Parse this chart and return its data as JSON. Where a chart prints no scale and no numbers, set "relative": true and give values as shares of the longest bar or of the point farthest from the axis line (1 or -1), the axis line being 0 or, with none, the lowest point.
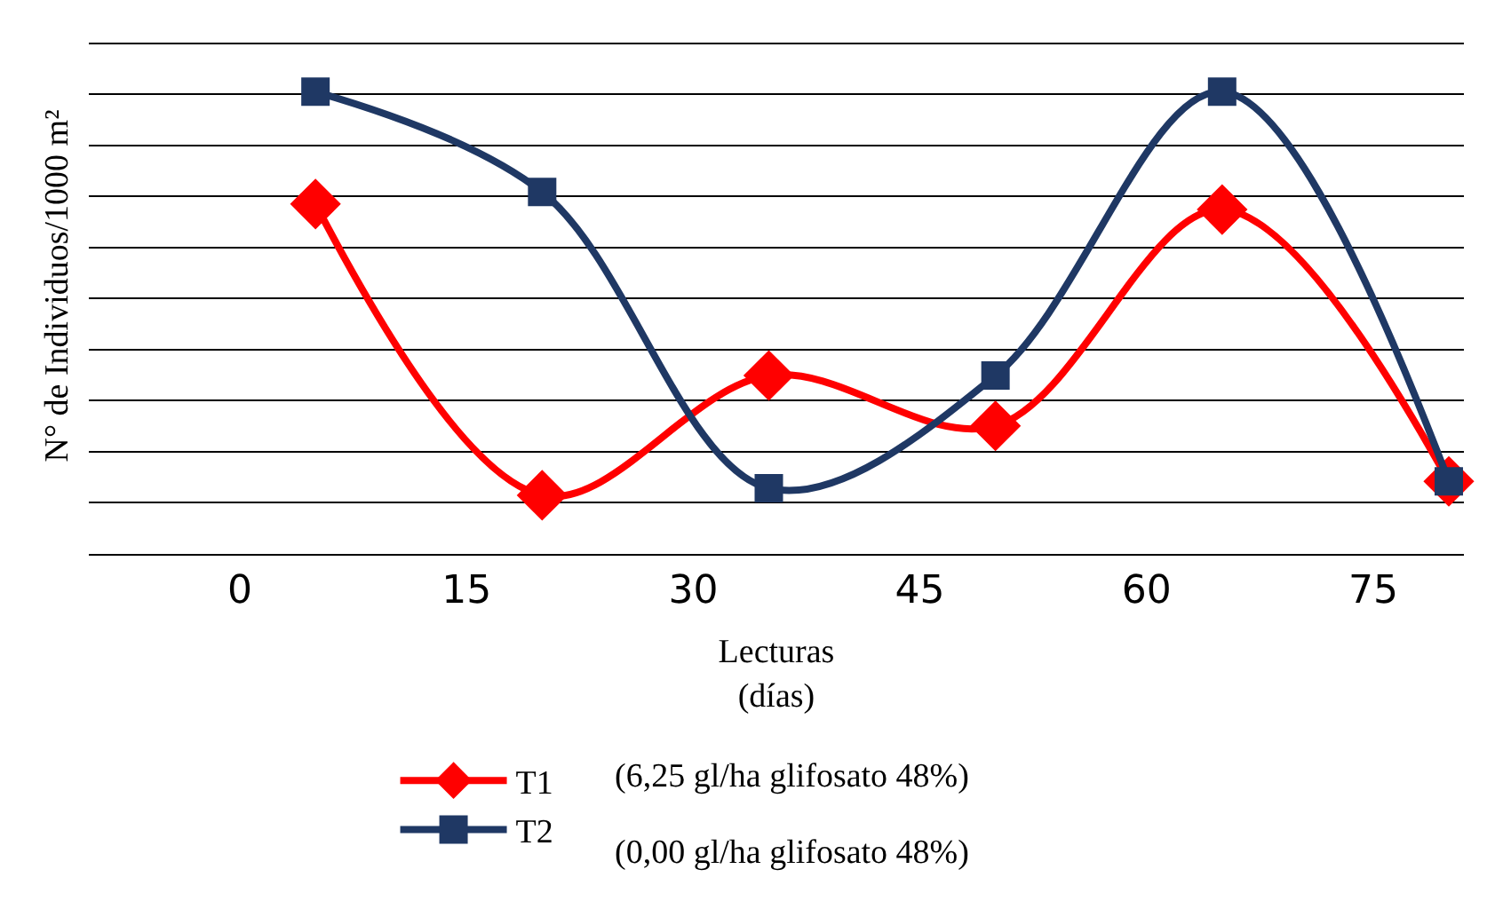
{
  "chart_data": {
    "type": "line",
    "relative": true,
    "xlabel": "Lecturas\n(días)",
    "ylabel": "N° de Individuos/1000 m²",
    "x": [
      5,
      20,
      35,
      50,
      65,
      80
    ],
    "xlim": [
      -10,
      81
    ],
    "xticks": [
      0,
      15,
      30,
      45,
      60,
      75
    ],
    "series": [
      {
        "name": "T1",
        "color": "#ff0000",
        "marker": "diamond",
        "values": [
          0.757,
          0.127,
          0.386,
          0.277,
          0.745,
          0.157
        ]
      },
      {
        "name": "T2",
        "color": "#1f3864",
        "marker": "square",
        "values": [
          1,
          0.783,
          0.142,
          0.386,
          1,
          0.157
        ]
      }
    ],
    "annotations": [
      "(6,25 gl/ha glifosato 48%)",
      "(0,00 gl/ha glifosato 48%)"
    ],
    "grid": "y",
    "legend": "bottom"
  }
}
